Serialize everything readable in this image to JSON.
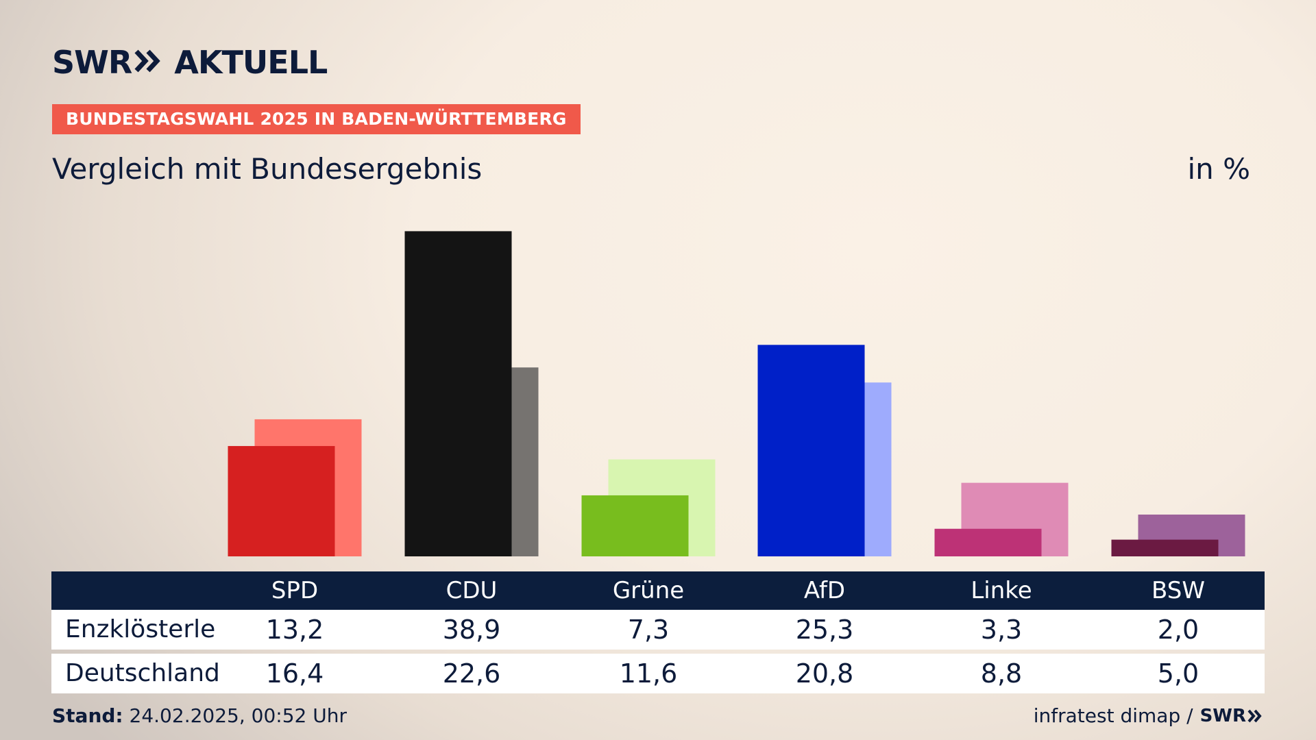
{
  "brand": {
    "logo_text": "SWR",
    "logo_suffix": "AKTUELL",
    "icon": "double-chevron-right-icon"
  },
  "header": {
    "badge": "BUNDESTAGSWAHL 2025 IN BADEN-WÜRTTEMBERG",
    "subtitle": "Vergleich mit Bundesergebnis",
    "unit": "in %"
  },
  "chart_data": {
    "type": "bar",
    "categories": [
      "SPD",
      "CDU",
      "Grüne",
      "AfD",
      "Linke",
      "BSW"
    ],
    "series": [
      {
        "name": "Enzklösterle",
        "values": [
          13.2,
          38.9,
          7.3,
          25.3,
          3.3,
          2.0
        ]
      },
      {
        "name": "Deutschland",
        "values": [
          16.4,
          22.6,
          11.6,
          20.8,
          8.8,
          5.0
        ]
      }
    ],
    "colors_primary": [
      "#d62020",
      "#141414",
      "#78bd1e",
      "#0020c8",
      "#bd3276",
      "#6b1a42"
    ],
    "colors_secondary": [
      "#ff756b",
      "#767370",
      "#d8f5b0",
      "#9eabfd",
      "#df8bb5",
      "#9d629b"
    ],
    "ylim": [
      0,
      40
    ]
  },
  "table": {
    "row_labels": [
      "Enzklösterle",
      "Deutschland"
    ],
    "rows": [
      [
        "13,2",
        "38,9",
        "7,3",
        "25,3",
        "3,3",
        "2,0"
      ],
      [
        "16,4",
        "22,6",
        "11,6",
        "20,8",
        "8,8",
        "5,0"
      ]
    ]
  },
  "footer": {
    "stand_label": "Stand:",
    "stand_value": "24.02.2025, 00:52 Uhr",
    "source": "infratest dimap /",
    "source_logo": "SWR"
  },
  "colors": {
    "navy": "#0c1e3d",
    "badge": "#f0594a"
  }
}
